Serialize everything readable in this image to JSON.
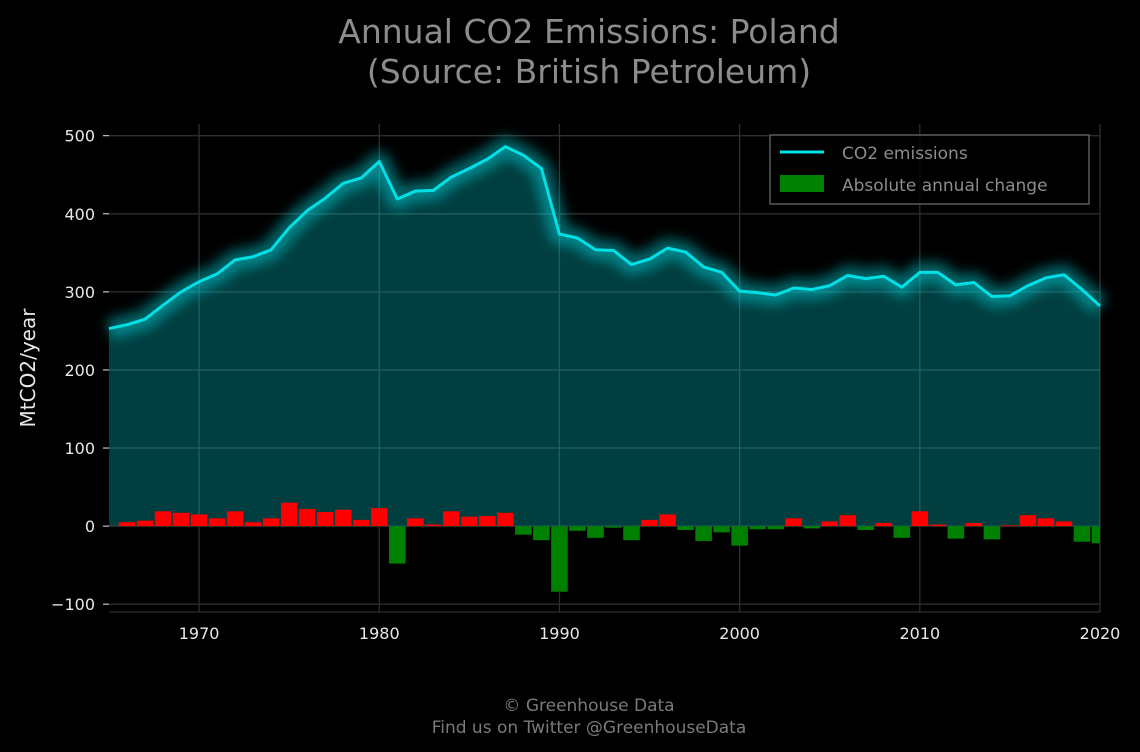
{
  "chart_data": {
    "type": "area",
    "title_lines": [
      "Annual CO2 Emissions: Poland",
      "(Source: British Petroleum)"
    ],
    "xlabel": "",
    "ylabel": "MtCO2/year",
    "xlim": [
      1965,
      2020
    ],
    "ylim": [
      -110,
      515
    ],
    "x_ticks": [
      1970,
      1980,
      1990,
      2000,
      2010,
      2020
    ],
    "y_ticks": [
      -100,
      0,
      100,
      200,
      300,
      400,
      500
    ],
    "y_tick_labels": [
      "−100",
      "0",
      "100",
      "200",
      "300",
      "400",
      "500"
    ],
    "grid": true,
    "legend_position": "top-right",
    "series": [
      {
        "name": "CO2 emissions",
        "kind": "line",
        "color": "#00e0e6",
        "x": [
          1965,
          1966,
          1967,
          1968,
          1969,
          1970,
          1971,
          1972,
          1973,
          1974,
          1975,
          1976,
          1977,
          1978,
          1979,
          1980,
          1981,
          1982,
          1983,
          1984,
          1985,
          1986,
          1987,
          1988,
          1989,
          1990,
          1991,
          1992,
          1993,
          1994,
          1995,
          1996,
          1997,
          1998,
          1999,
          2000,
          2001,
          2002,
          2003,
          2004,
          2005,
          2006,
          2007,
          2008,
          2009,
          2010,
          2011,
          2012,
          2013,
          2014,
          2015,
          2016,
          2017,
          2018,
          2019,
          2020
        ],
        "values": [
          253,
          258,
          265,
          283,
          300,
          313,
          323,
          341,
          345,
          354,
          382,
          404,
          420,
          439,
          446,
          467,
          419,
          429,
          430,
          447,
          458,
          470,
          486,
          475,
          458,
          374,
          369,
          354,
          353,
          335,
          342,
          356,
          351,
          332,
          325,
          301,
          299,
          296,
          305,
          303,
          308,
          321,
          317,
          320,
          306,
          325,
          325,
          309,
          312,
          294,
          295,
          308,
          318,
          322,
          303,
          282
        ]
      },
      {
        "name": "Absolute annual change",
        "kind": "bar",
        "color_positive": "#ff0000",
        "color_negative": "#008000",
        "x": [
          1965,
          1966,
          1967,
          1968,
          1969,
          1970,
          1971,
          1972,
          1973,
          1974,
          1975,
          1976,
          1977,
          1978,
          1979,
          1980,
          1981,
          1982,
          1983,
          1984,
          1985,
          1986,
          1987,
          1988,
          1989,
          1990,
          1991,
          1992,
          1993,
          1994,
          1995,
          1996,
          1997,
          1998,
          1999,
          2000,
          2001,
          2002,
          2003,
          2004,
          2005,
          2006,
          2007,
          2008,
          2009,
          2010,
          2011,
          2012,
          2013,
          2014,
          2015,
          2016,
          2017,
          2018,
          2019,
          2020
        ],
        "values": [
          0,
          5,
          7,
          19,
          17,
          15,
          10,
          19,
          5,
          10,
          30,
          22,
          18,
          21,
          8,
          23,
          -48,
          10,
          2,
          19,
          12,
          13,
          17,
          -11,
          -18,
          -84,
          -6,
          -15,
          -2,
          -18,
          8,
          15,
          -5,
          -19,
          -8,
          -25,
          -4,
          -4,
          10,
          -3,
          6,
          14,
          -5,
          4,
          -15,
          19,
          2,
          -16,
          4,
          -17,
          1,
          14,
          10,
          6,
          -20,
          -22
        ]
      }
    ]
  },
  "footer": {
    "line1": "© Greenhouse Data",
    "line2": "Find us on Twitter @GreenhouseData"
  }
}
